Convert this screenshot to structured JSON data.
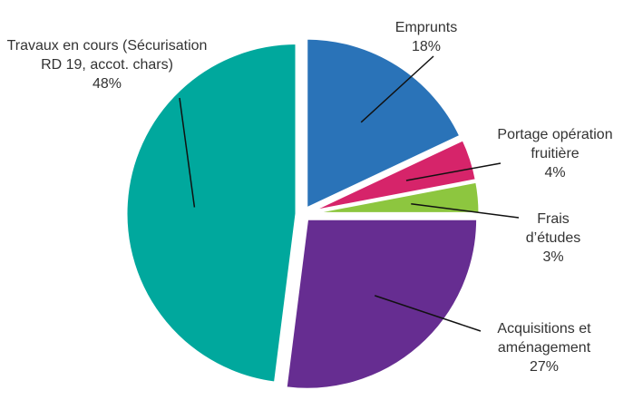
{
  "chart_data": {
    "type": "pie",
    "categories": [
      "Emprunts",
      "Portage opération fruitière",
      "Frais d’études",
      "Acquisitions et aménagement",
      "Travaux en cours (Sécurisation RD 19, accot. chars)"
    ],
    "values": [
      18,
      4,
      3,
      27,
      48
    ],
    "value_labels": [
      "18%",
      "4%",
      "3%",
      "27%",
      "48%"
    ],
    "colors": [
      "#2a73b8",
      "#d6246a",
      "#8dc63f",
      "#662d91",
      "#00a89d"
    ]
  }
}
